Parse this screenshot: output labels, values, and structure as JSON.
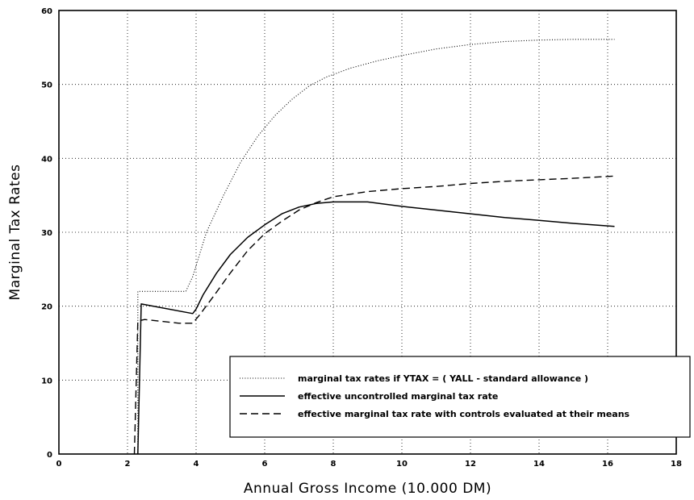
{
  "chart_data": {
    "type": "line",
    "xlabel": "Annual Gross Income (10.000 DM)",
    "ylabel": "Marginal Tax Rates",
    "xlim": [
      0,
      18
    ],
    "ylim": [
      0,
      60
    ],
    "xticks": [
      0,
      2,
      4,
      6,
      8,
      10,
      12,
      14,
      16,
      18
    ],
    "yticks": [
      0,
      10,
      20,
      30,
      40,
      50,
      60
    ],
    "grid": true,
    "legend_position": "bottom-right",
    "series": [
      {
        "name": "marginal tax rates if YTAX = ( YALL - standard allowance )",
        "style": "dotted",
        "x": [
          2.05,
          2.3,
          2.3,
          3.7,
          3.9,
          4.3,
          4.8,
          5.3,
          5.8,
          6.3,
          6.8,
          7.3,
          7.8,
          8.5,
          9.3,
          10.0,
          11.0,
          12.0,
          13.0,
          14.0,
          15.0,
          16.2
        ],
        "y": [
          0,
          0,
          22,
          22,
          24,
          30,
          35,
          39.5,
          43,
          45.8,
          48,
          49.8,
          51,
          52.2,
          53.2,
          53.9,
          54.8,
          55.4,
          55.8,
          56.0,
          56.1,
          56.1
        ]
      },
      {
        "name": "effective uncontrolled marginal tax rate",
        "style": "solid",
        "x": [
          2.3,
          2.4,
          3.9,
          4.0,
          4.2,
          4.6,
          5.0,
          5.5,
          6.0,
          6.5,
          7.0,
          7.5,
          8.0,
          8.5,
          9.0,
          10.0,
          11.0,
          12.0,
          13.0,
          14.0,
          15.0,
          16.2
        ],
        "y": [
          0,
          20.3,
          19,
          19.6,
          21.5,
          24.5,
          27,
          29.3,
          31,
          32.5,
          33.4,
          33.9,
          34.1,
          34.1,
          34.1,
          33.5,
          33,
          32.5,
          32,
          31.6,
          31.2,
          30.8
        ]
      },
      {
        "name": "effective marginal tax rate with controls evaluated at their means",
        "style": "dashed",
        "x": [
          2.2,
          2.3,
          2.5,
          3.5,
          3.9,
          4.1,
          4.5,
          5.0,
          5.5,
          6.0,
          6.5,
          7.0,
          7.5,
          8.0,
          9.0,
          10.0,
          11.0,
          12.0,
          13.0,
          14.0,
          15.0,
          16.2
        ],
        "y": [
          0,
          18,
          18.2,
          17.7,
          17.7,
          18.8,
          21.3,
          24.5,
          27.5,
          29.8,
          31.5,
          33,
          34,
          34.8,
          35.5,
          35.9,
          36.2,
          36.6,
          36.9,
          37.1,
          37.3,
          37.6
        ]
      }
    ]
  }
}
